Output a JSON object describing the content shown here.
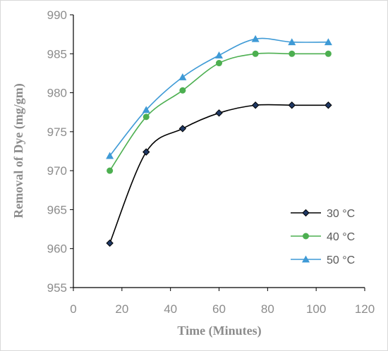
{
  "chart_data": {
    "type": "line",
    "xlabel": "Time (Minutes)",
    "ylabel": "Removal of Dye (mg/gm)",
    "xlim": [
      0,
      120
    ],
    "ylim": [
      955,
      990
    ],
    "xticks": [
      0,
      20,
      40,
      60,
      80,
      100,
      120
    ],
    "yticks": [
      955,
      960,
      965,
      970,
      975,
      980,
      985,
      990
    ],
    "grid": false,
    "smooth": true,
    "legend_position": "bottom-right",
    "series": [
      {
        "name": "30 °C",
        "color": "#000000",
        "marker": "diamond",
        "marker_fill": "#1f3864",
        "x": [
          15,
          30,
          45,
          60,
          75,
          90,
          105
        ],
        "y": [
          960.7,
          972.4,
          975.4,
          977.4,
          978.4,
          978.4,
          978.4
        ]
      },
      {
        "name": "40 °C",
        "color": "#4caf50",
        "marker": "circle",
        "marker_fill": "#4caf50",
        "x": [
          15,
          30,
          45,
          60,
          75,
          90,
          105
        ],
        "y": [
          970.0,
          976.9,
          980.3,
          983.8,
          985.0,
          985.0,
          985.0
        ]
      },
      {
        "name": "50 °C",
        "color": "#3e9ad6",
        "marker": "triangle",
        "marker_fill": "#3e9ad6",
        "x": [
          15,
          30,
          45,
          60,
          75,
          90,
          105
        ],
        "y": [
          971.9,
          977.8,
          982.0,
          984.8,
          986.9,
          986.5,
          986.5
        ]
      }
    ]
  }
}
